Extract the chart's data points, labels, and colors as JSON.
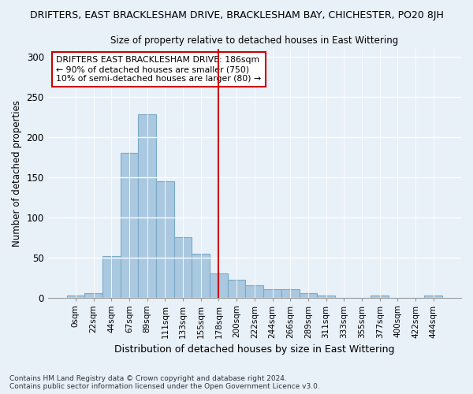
{
  "title1": "DRIFTERS, EAST BRACKLESHAM DRIVE, BRACKLESHAM BAY, CHICHESTER, PO20 8JH",
  "title2": "Size of property relative to detached houses in East Wittering",
  "xlabel": "Distribution of detached houses by size in East Wittering",
  "ylabel": "Number of detached properties",
  "footer1": "Contains HM Land Registry data © Crown copyright and database right 2024.",
  "footer2": "Contains public sector information licensed under the Open Government Licence v3.0.",
  "bar_labels": [
    "0sqm",
    "22sqm",
    "44sqm",
    "67sqm",
    "89sqm",
    "111sqm",
    "133sqm",
    "155sqm",
    "178sqm",
    "200sqm",
    "222sqm",
    "244sqm",
    "266sqm",
    "289sqm",
    "311sqm",
    "333sqm",
    "355sqm",
    "377sqm",
    "400sqm",
    "422sqm",
    "444sqm"
  ],
  "bar_values": [
    2,
    5,
    52,
    180,
    228,
    145,
    75,
    55,
    30,
    22,
    15,
    10,
    10,
    5,
    2,
    0,
    0,
    2,
    0,
    0,
    2
  ],
  "bar_color": "#aac8e0",
  "bar_edge_color": "#7aaac8",
  "vline_color": "#cc0000",
  "vline_index": 8,
  "annotation_text": "DRIFTERS EAST BRACKLESHAM DRIVE: 186sqm\n← 90% of detached houses are smaller (750)\n10% of semi-detached houses are larger (80) →",
  "annotation_box_edgecolor": "#cc0000",
  "background_color": "#e8f0f8",
  "plot_bg_color": "#e8f0f8",
  "ylim": [
    0,
    310
  ],
  "yticks": [
    0,
    50,
    100,
    150,
    200,
    250,
    300
  ]
}
